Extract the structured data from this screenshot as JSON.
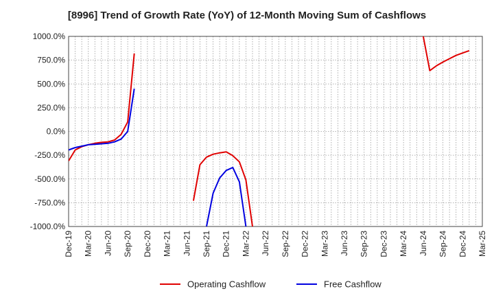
{
  "chart_data": {
    "type": "line",
    "title": "[8996]  Trend of Growth Rate (YoY) of 12-Month Moving Sum of Cashflows",
    "xlabel": "",
    "ylabel": "",
    "ylim": [
      -1000,
      1000
    ],
    "y_ticks": [
      "1000.0%",
      "750.0%",
      "500.0%",
      "250.0%",
      "0.0%",
      "-250.0%",
      "-500.0%",
      "-750.0%",
      "-1000.0%"
    ],
    "x_ticks": [
      "Dec-19",
      "Mar-20",
      "Jun-20",
      "Sep-20",
      "Dec-20",
      "Mar-21",
      "Jun-21",
      "Sep-21",
      "Dec-21",
      "Mar-22",
      "Jun-22",
      "Sep-22",
      "Dec-22",
      "Mar-23",
      "Jun-23",
      "Sep-23",
      "Dec-23",
      "Mar-24",
      "Jun-24",
      "Sep-24",
      "Dec-24",
      "Mar-25"
    ],
    "grid": true,
    "legend_position": "bottom",
    "series": [
      {
        "name": "Operating Cashflow",
        "color": "#e00000",
        "points": [
          [
            "Dec-19",
            -310
          ],
          [
            "Jan-20",
            -195
          ],
          [
            "Feb-20",
            -160
          ],
          [
            "Mar-20",
            -140
          ],
          [
            "Apr-20",
            -125
          ],
          [
            "May-20",
            -115
          ],
          [
            "Jun-20",
            -110
          ],
          [
            "Jul-20",
            -90
          ],
          [
            "Aug-20",
            -30
          ],
          [
            "Sep-20",
            100
          ],
          [
            "Oct-20",
            820
          ],
          null,
          [
            "Jul-21",
            -730
          ],
          [
            "Aug-21",
            -350
          ],
          [
            "Sep-21",
            -270
          ],
          [
            "Oct-21",
            -240
          ],
          [
            "Nov-21",
            -225
          ],
          [
            "Dec-21",
            -215
          ],
          [
            "Jan-22",
            -255
          ],
          [
            "Feb-22",
            -320
          ],
          [
            "Mar-22",
            -510
          ],
          [
            "Apr-22",
            -1000
          ],
          null,
          [
            "Jun-24",
            1000
          ],
          [
            "Jul-24",
            640
          ],
          [
            "Aug-24",
            690
          ],
          [
            "Sep-24",
            730
          ],
          [
            "Oct-24",
            765
          ],
          [
            "Nov-24",
            800
          ],
          [
            "Dec-24",
            825
          ],
          [
            "Jan-25",
            850
          ]
        ]
      },
      {
        "name": "Free Cashflow",
        "color": "#0000e0",
        "points": [
          [
            "Dec-19",
            -195
          ],
          [
            "Jan-20",
            -170
          ],
          [
            "Feb-20",
            -155
          ],
          [
            "Mar-20",
            -140
          ],
          [
            "Apr-20",
            -135
          ],
          [
            "May-20",
            -130
          ],
          [
            "Jun-20",
            -125
          ],
          [
            "Jul-20",
            -110
          ],
          [
            "Aug-20",
            -80
          ],
          [
            "Sep-20",
            0
          ],
          [
            "Oct-20",
            450
          ],
          null,
          [
            "Sep-21",
            -1000
          ],
          [
            "Oct-21",
            -650
          ],
          [
            "Nov-21",
            -490
          ],
          [
            "Dec-21",
            -410
          ],
          [
            "Jan-22",
            -380
          ],
          [
            "Feb-22",
            -530
          ],
          [
            "Mar-22",
            -1000
          ]
        ]
      }
    ]
  }
}
